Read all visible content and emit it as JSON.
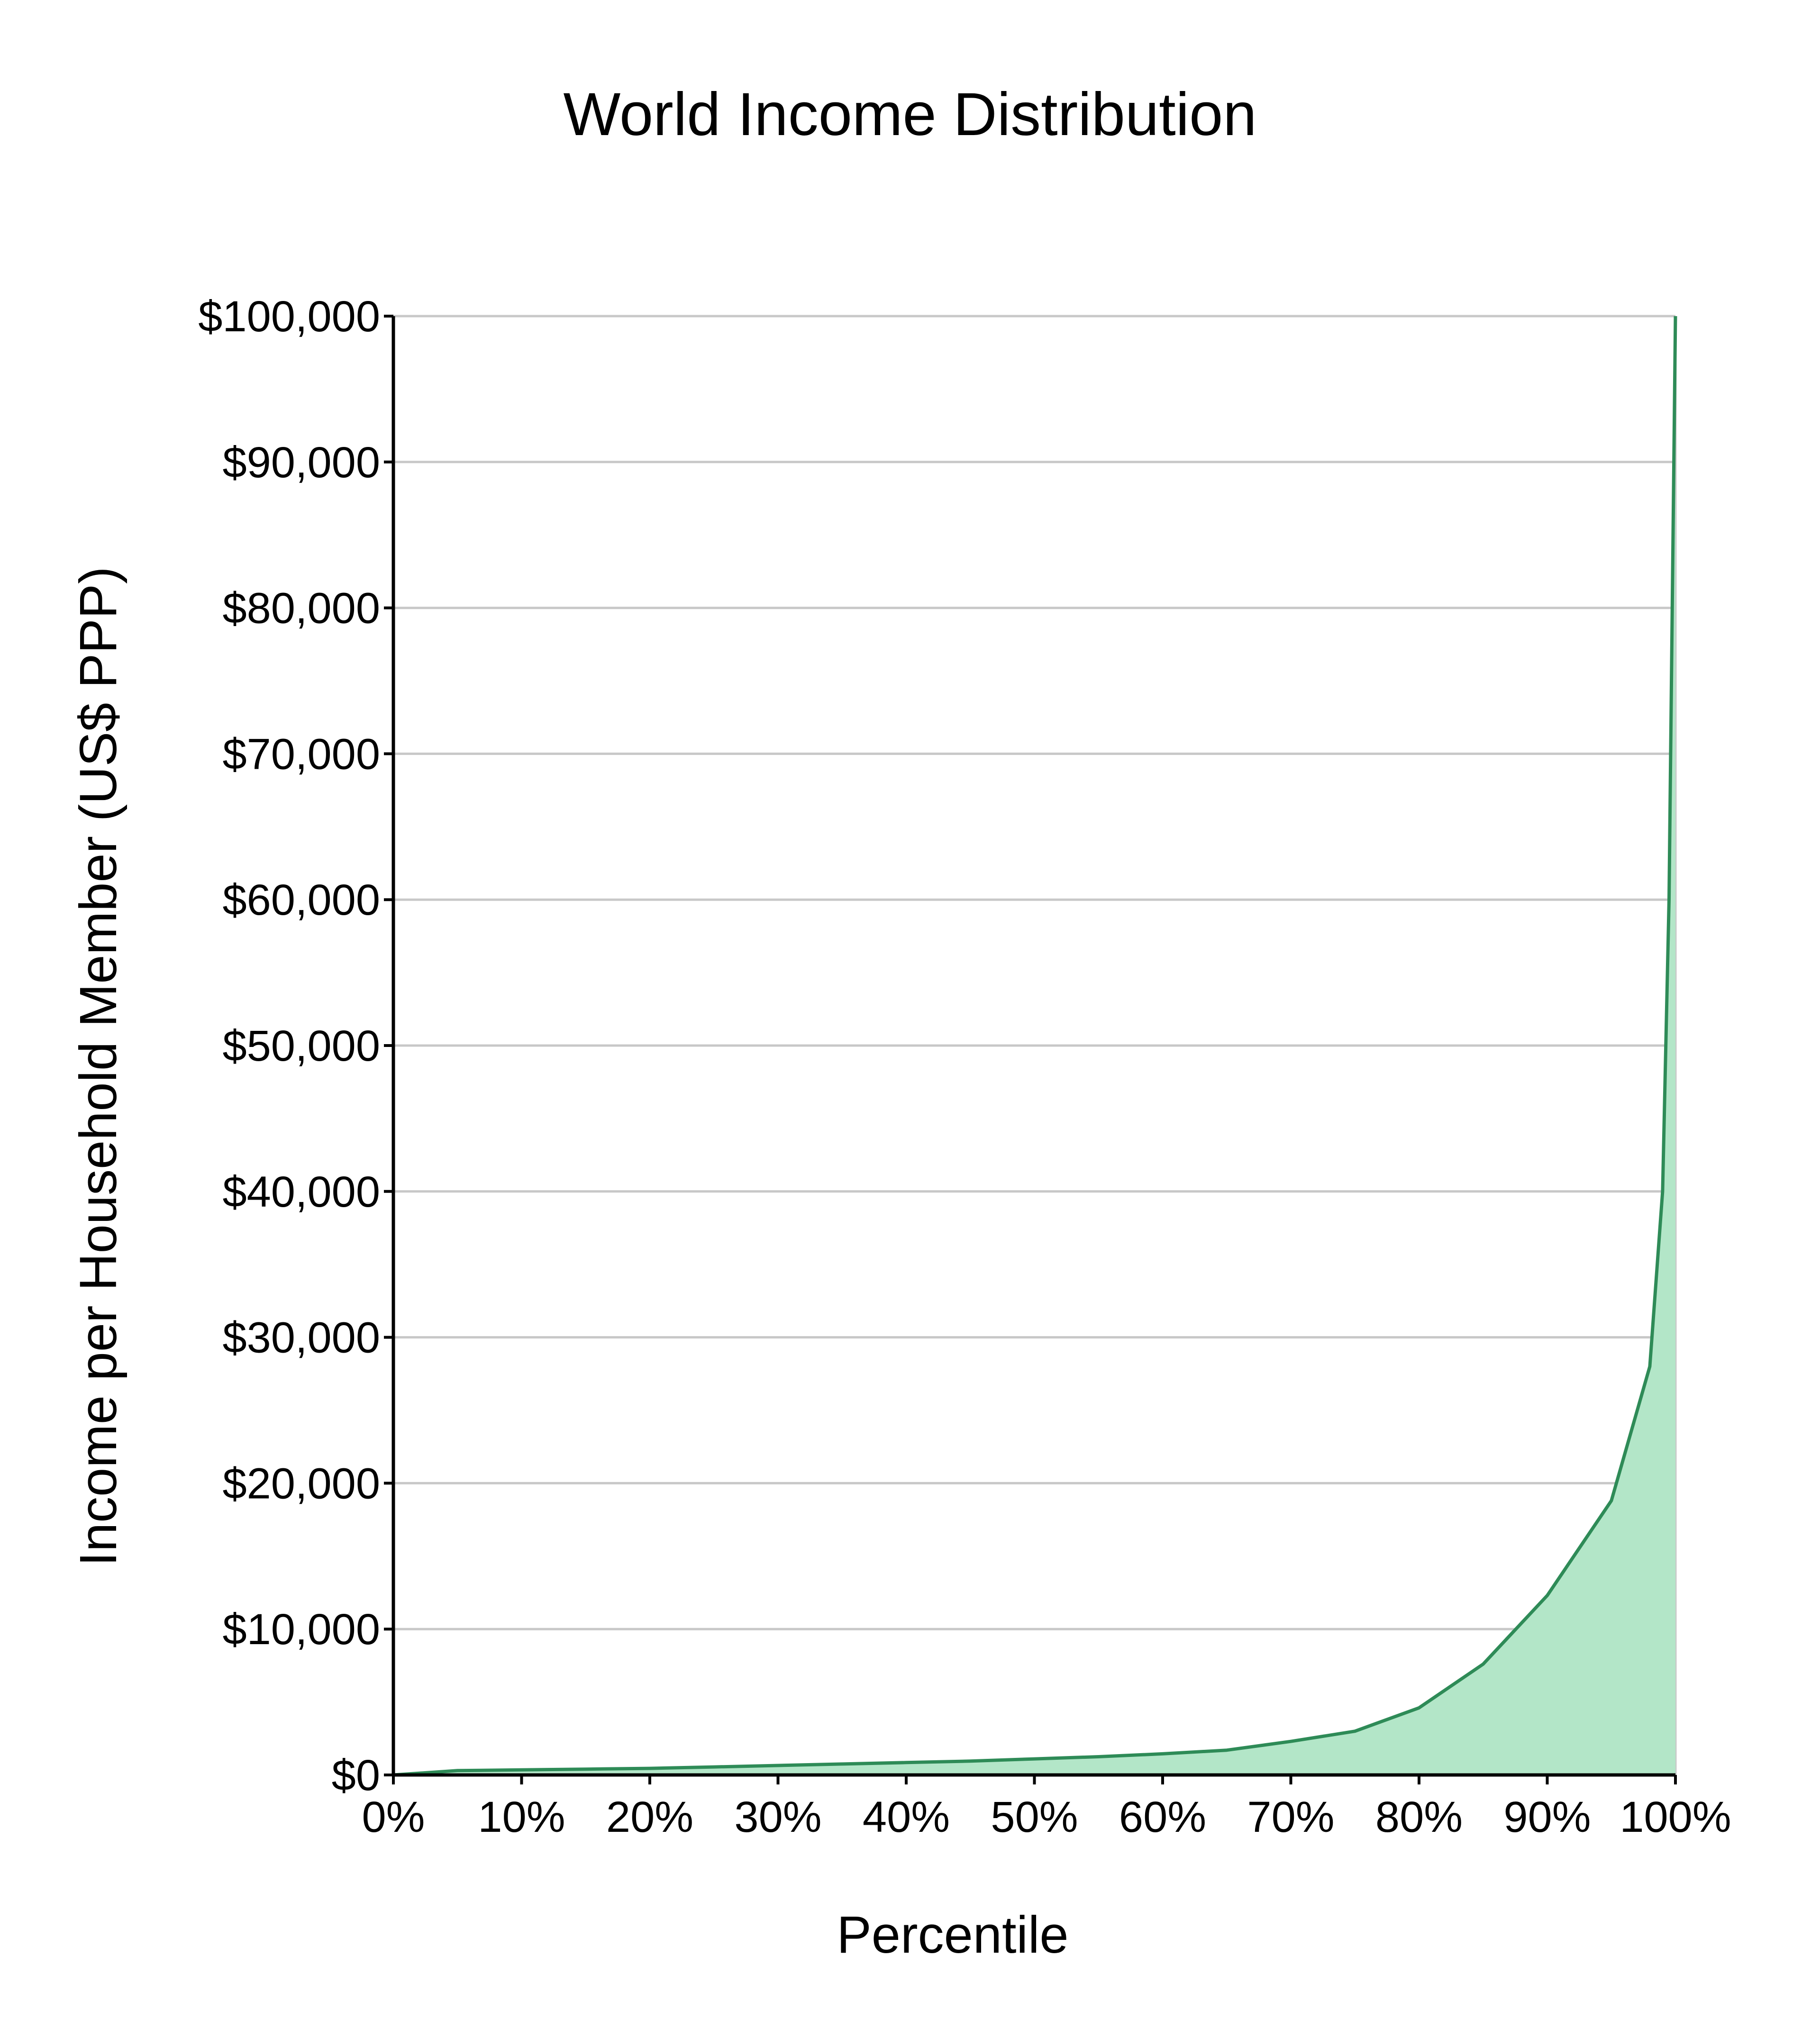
{
  "colors": {
    "line": "#2e8b57",
    "fill": "#b3e6c8",
    "grid": "#c8c8c8",
    "axis": "#000000",
    "background": "#ffffff"
  },
  "chart_data": {
    "type": "area",
    "title": "World Income Distribution",
    "xlabel": "Percentile",
    "ylabel": "Income per Household Member  (US$ PPP)",
    "xlim": [
      0,
      100
    ],
    "ylim": [
      0,
      100000
    ],
    "grid": true,
    "legend": "none",
    "x_ticks": [
      0,
      10,
      20,
      30,
      40,
      50,
      60,
      70,
      80,
      90,
      100
    ],
    "x_tick_labels": [
      "0%",
      "10%",
      "20%",
      "30%",
      "40%",
      "50%",
      "60%",
      "70%",
      "80%",
      "90%",
      "100%"
    ],
    "y_ticks": [
      0,
      10000,
      20000,
      30000,
      40000,
      50000,
      60000,
      70000,
      80000,
      90000,
      100000
    ],
    "y_tick_labels": [
      "$0",
      "$10,000",
      "$20,000",
      "$30,000",
      "$40,000",
      "$50,000",
      "$60,000",
      "$70,000",
      "$80,000",
      "$90,000",
      "$100,000"
    ],
    "series": [
      {
        "x": [
          0,
          5,
          10,
          15,
          20,
          25,
          30,
          35,
          40,
          45,
          50,
          55,
          60,
          65,
          70,
          75,
          80,
          85,
          90,
          95,
          98,
          99,
          99.5,
          100
        ],
        "y": [
          0,
          300,
          350,
          400,
          450,
          550,
          650,
          750,
          850,
          950,
          1100,
          1250,
          1450,
          1700,
          2300,
          3000,
          4600,
          7600,
          12300,
          18800,
          28000,
          40000,
          60000,
          100000
        ]
      }
    ]
  }
}
